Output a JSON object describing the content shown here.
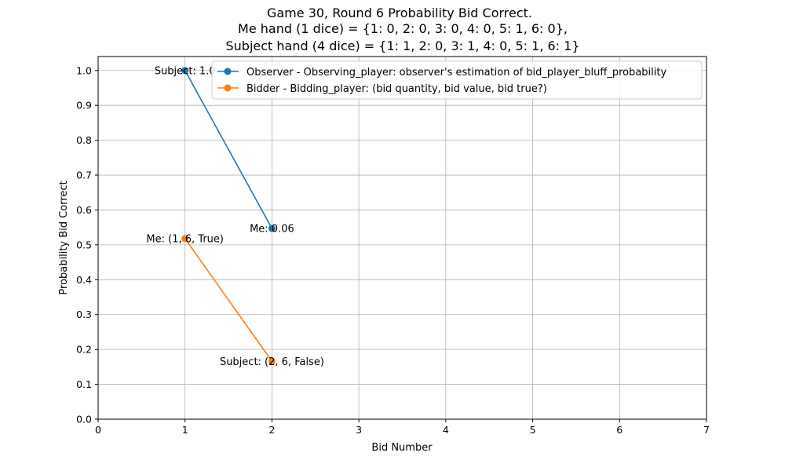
{
  "chart_data": {
    "type": "line",
    "title_lines": [
      "Game 30, Round 6 Probability Bid Correct.",
      "Me hand (1 dice) = {1: 0, 2: 0, 3: 0, 4: 0, 5: 1, 6: 0},",
      "Subject hand (4 dice) = {1: 1, 2: 0, 3: 1, 4: 0, 5: 1, 6: 1}"
    ],
    "xlabel": "Bid Number",
    "ylabel": "Probability Bid Correct",
    "xlim": [
      0,
      7
    ],
    "ylim": [
      0,
      1.04
    ],
    "xticks": [
      "0",
      "1",
      "2",
      "3",
      "4",
      "5",
      "6",
      "7"
    ],
    "yticks": [
      "0.0",
      "0.1",
      "0.2",
      "0.3",
      "0.4",
      "0.5",
      "0.6",
      "0.7",
      "0.8",
      "0.9",
      "1.0"
    ],
    "grid": true,
    "legend_position": "top-right",
    "series": [
      {
        "name": "Observer - Observing_player: observer's estimation of bid_player_bluff_probability",
        "color": "#1f77b4",
        "x": [
          1,
          2
        ],
        "y": [
          1.0,
          0.547
        ],
        "labels": [
          "Subject: 1.0",
          "Me: 0.06"
        ]
      },
      {
        "name": "Bidder -  Bidding_player: (bid quantity, bid value, bid true?)",
        "color": "#ff7f0e",
        "x": [
          1,
          2
        ],
        "y": [
          0.518,
          0.166
        ],
        "labels": [
          "Me: (1, 6, True)",
          "Subject: (2, 6, False)"
        ]
      }
    ]
  }
}
